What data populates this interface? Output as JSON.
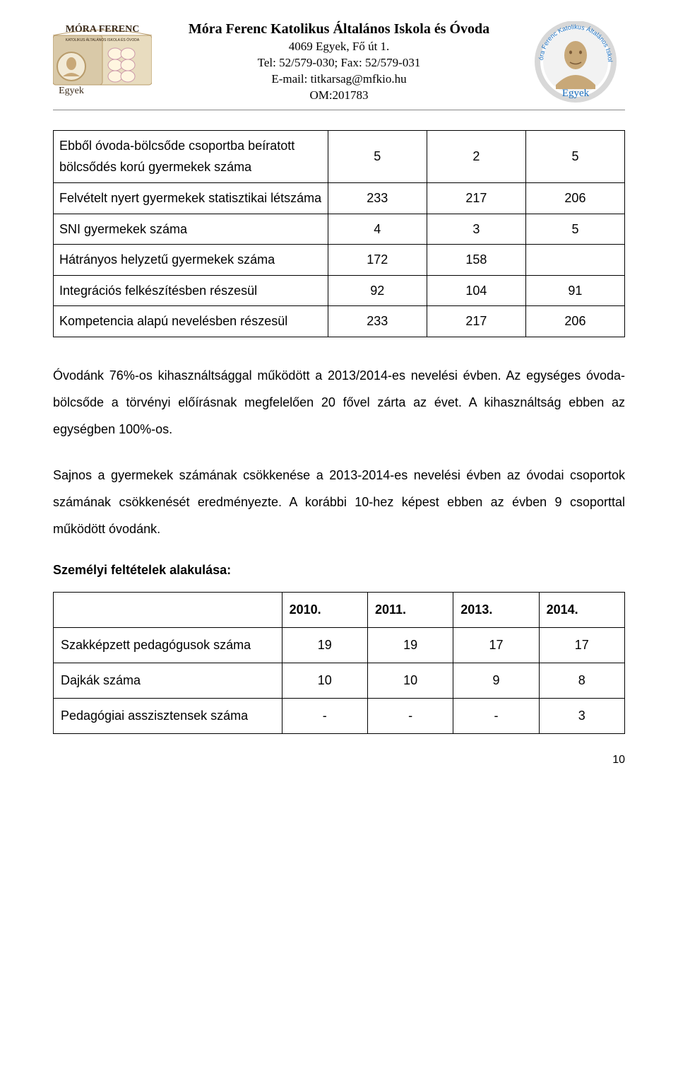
{
  "header": {
    "title": "Móra Ferenc Katolikus Általános Iskola és Óvoda",
    "address": "4069 Egyek, Fő út 1.",
    "telfax": "Tel: 52/579-030; Fax: 52/579-031",
    "email": "E-mail: titkarsag@mfkio.hu",
    "om": "OM:201783",
    "logo_left_title": "MÓRA FERENC",
    "logo_left_sub": "KATOLIKUS ÁLTALÁNOS ISKOLA ÉS ÓVODA",
    "logo_town": "Egyek"
  },
  "table1": {
    "rows": [
      {
        "label": "Ebből óvoda-bölcsőde csoportba beíratott bölcsődés korú gyermekek száma",
        "c1": "5",
        "c2": "2",
        "c3": "5"
      },
      {
        "label": "Felvételt nyert gyermekek statisztikai létszáma",
        "c1": "233",
        "c2": "217",
        "c3": "206"
      },
      {
        "label": "SNI gyermekek száma",
        "c1": "4",
        "c2": "3",
        "c3": "5"
      },
      {
        "label": "Hátrányos helyzetű gyermekek száma",
        "c1": "172",
        "c2": "158",
        "c3": ""
      },
      {
        "label": "Integrációs felkészítésben részesül",
        "c1": "92",
        "c2": "104",
        "c3": "91"
      },
      {
        "label": "Kompetencia alapú nevelésben részesül",
        "c1": "233",
        "c2": "217",
        "c3": "206"
      }
    ]
  },
  "paragraph1": "Óvodánk 76%-os kihasználtsággal működött a 2013/2014-es nevelési évben. Az egységes óvoda-bölcsőde a törvényi előírásnak megfelelően 20 fővel zárta az évet. A kihasználtság ebben az egységben 100%-os.",
  "paragraph2": "Sajnos a gyermekek számának csökkenése a 2013-2014-es nevelési évben az óvodai csoportok számának csökkenését eredményezte. A korábbi 10-hez képest ebben az évben 9 csoporttal működött óvodánk.",
  "section_heading": "Személyi feltételek alakulása:",
  "table2": {
    "headers": [
      "",
      "2010.",
      "2011.",
      "2013.",
      "2014."
    ],
    "rows": [
      {
        "label": "Szakképzett pedagógusok száma",
        "v": [
          "19",
          "19",
          "17",
          "17"
        ]
      },
      {
        "label": "Dajkák száma",
        "v": [
          "10",
          "10",
          "9",
          "8"
        ]
      },
      {
        "label": "Pedagógiai asszisztensek száma",
        "v": [
          "-",
          "-",
          "-",
          "3"
        ]
      }
    ]
  },
  "page_number": "10",
  "colors": {
    "text": "#000000",
    "border": "#000000",
    "hr": "#888888",
    "bg": "#ffffff",
    "logo_book_l": "#d9c9a8",
    "logo_book_r": "#e8dcbf",
    "logo_coin": "#f2ead6",
    "logo_ring": "#d8d8d8",
    "logo_text": "#3a2a1a",
    "logo_arc": "#1a6fc0",
    "logo_bust": "#c8a878"
  }
}
